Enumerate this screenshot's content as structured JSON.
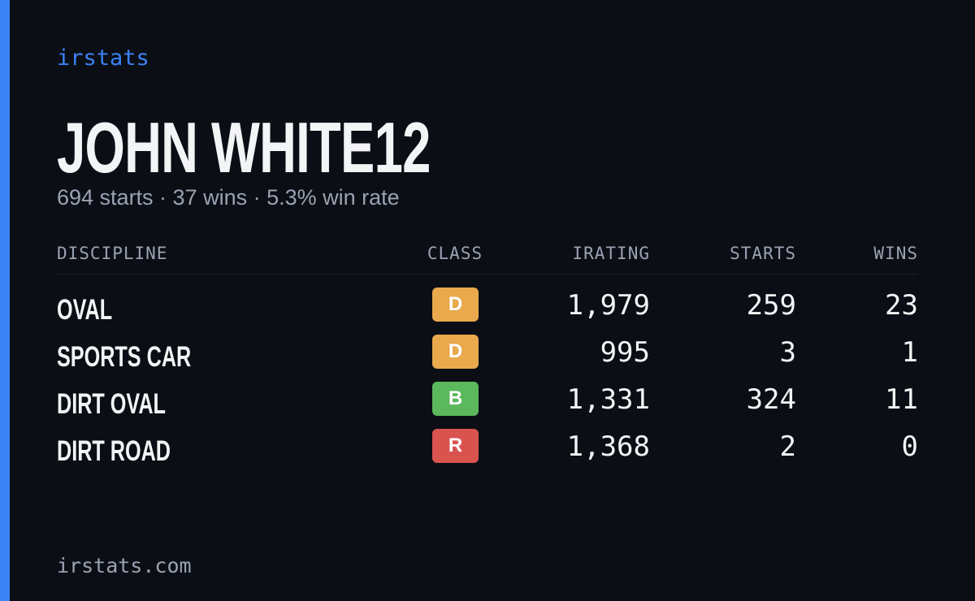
{
  "brand": "irstats",
  "title": "JOHN WHITE12",
  "subtitle": "694 starts · 37 wins · 5.3% win rate",
  "table": {
    "headers": [
      "DISCIPLINE",
      "CLASS",
      "IRATING",
      "STARTS",
      "WINS"
    ],
    "rows": [
      {
        "discipline": "OVAL",
        "class": "D",
        "class_color": "#e9a94c",
        "irating": "1,979",
        "starts": "259",
        "wins": "23"
      },
      {
        "discipline": "SPORTS CAR",
        "class": "D",
        "class_color": "#e9a94c",
        "irating": "995",
        "starts": "3",
        "wins": "1"
      },
      {
        "discipline": "DIRT OVAL",
        "class": "B",
        "class_color": "#5cb85c",
        "irating": "1,331",
        "starts": "324",
        "wins": "11"
      },
      {
        "discipline": "DIRT ROAD",
        "class": "R",
        "class_color": "#d9534f",
        "irating": "1,368",
        "starts": "2",
        "wins": "0"
      }
    ]
  },
  "footer": "irstats.com"
}
